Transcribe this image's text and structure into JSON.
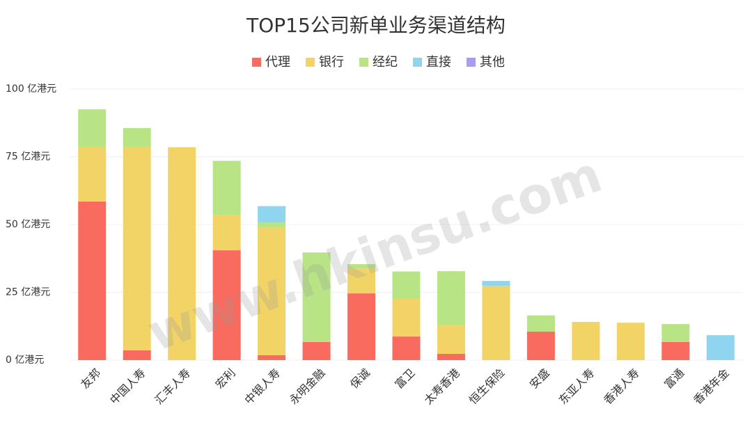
{
  "chart_data": {
    "type": "stacked-bar",
    "title": "TOP15公司新单业务渠道结构",
    "watermark": "www.hkinsu.com",
    "categories": [
      "友邦",
      "中国人寿",
      "汇丰人寿",
      "宏利",
      "中银人寿",
      "永明金融",
      "保诚",
      "富卫",
      "太寿香港",
      "恒生保险",
      "安盛",
      "东亚人寿",
      "香港人寿",
      "富通",
      "香港年金"
    ],
    "series": [
      {
        "name": "代理",
        "color": "#f96b5e",
        "values": [
          58.5,
          3.6,
          0,
          40.5,
          1.8,
          6.7,
          24.6,
          8.7,
          2.3,
          0,
          10.5,
          0,
          0,
          6.7,
          0
        ]
      },
      {
        "name": "银行",
        "color": "#f2d466",
        "values": [
          20,
          75,
          78.5,
          13,
          47,
          0,
          9.2,
          14,
          10.5,
          27.4,
          0,
          14.1,
          13.8,
          0,
          0
        ]
      },
      {
        "name": "经纪",
        "color": "#b8e486",
        "values": [
          14,
          7,
          0,
          20,
          2,
          33,
          1.6,
          10,
          20,
          0,
          6,
          0,
          0,
          6.6,
          0
        ]
      },
      {
        "name": "直接",
        "color": "#8fd5ef",
        "values": [
          0,
          0,
          0,
          0,
          6,
          0,
          0,
          0,
          0,
          1.8,
          0,
          0,
          0,
          0,
          9.2
        ]
      },
      {
        "name": "其他",
        "color": "#a99cf2",
        "values": [
          0,
          0,
          0,
          0,
          0,
          0,
          0,
          0,
          0,
          0,
          0,
          0,
          0,
          0,
          0
        ]
      }
    ],
    "ylim": [
      0,
      100
    ],
    "yticks": [
      {
        "value": 0,
        "label": "0 亿港元"
      },
      {
        "value": 25,
        "label": "25 亿港元"
      },
      {
        "value": 50,
        "label": "50 亿港元"
      },
      {
        "value": 75,
        "label": "75 亿港元"
      },
      {
        "value": 100,
        "label": "100 亿港元"
      }
    ],
    "grid": true,
    "legend": "top"
  }
}
